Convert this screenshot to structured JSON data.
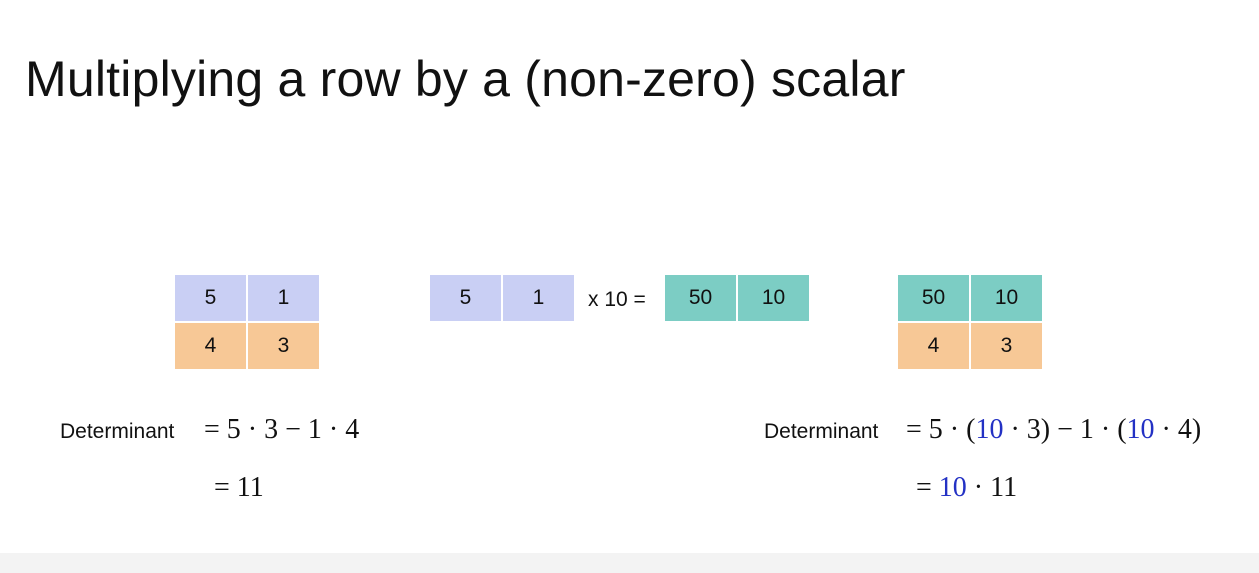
{
  "title": "Multiplying a row by a (non-zero) scalar",
  "left_matrix": {
    "rows": [
      [
        "5",
        "1"
      ],
      [
        "4",
        "3"
      ]
    ],
    "row_colors": [
      "#c9cff4",
      "#f7c896"
    ]
  },
  "operation": {
    "input_row": [
      "5",
      "1"
    ],
    "label": "x 10 =",
    "output_row": [
      "50",
      "10"
    ],
    "input_color": "#c9cff4",
    "output_color": "#7ccdc4"
  },
  "right_matrix": {
    "rows": [
      [
        "50",
        "10"
      ],
      [
        "4",
        "3"
      ]
    ],
    "row_colors": [
      "#7ccdc4",
      "#f7c896"
    ]
  },
  "left_determinant": {
    "label": "Determinant",
    "line1": "= 5 · 3 − 1 · 4",
    "line2": "= 11"
  },
  "right_determinant": {
    "label": "Determinant",
    "line1_parts": [
      "= 5 · (",
      "10",
      " · 3) − 1 · (",
      "10",
      " · 4)"
    ],
    "line2_parts": [
      "= ",
      "10",
      " · 11"
    ],
    "highlight_color": "#2331c4"
  }
}
